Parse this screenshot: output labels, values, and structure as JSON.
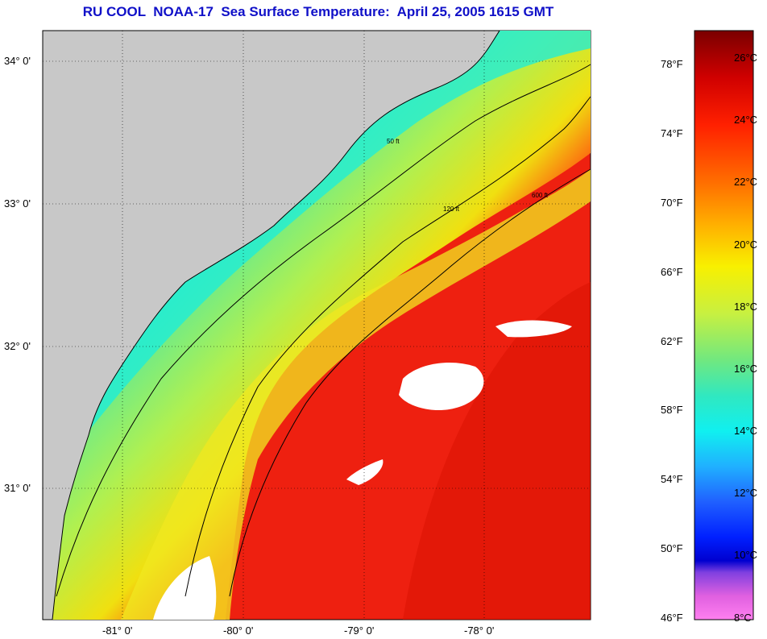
{
  "title": "RU COOL  NOAA-17  Sea Surface Temperature:  April 25, 2005 1615 GMT",
  "map": {
    "lat_ticks": [
      "34° 0'",
      "33° 0'",
      "32° 0'",
      "31° 0'"
    ],
    "lon_ticks": [
      "-81° 0'",
      "-80° 0'",
      "-79° 0'",
      "-78° 0'"
    ],
    "contour_labels": [
      "50 ft",
      "120 ft",
      "600 ft"
    ]
  },
  "colorbar": {
    "fahrenheit": [
      "78°F",
      "74°F",
      "70°F",
      "66°F",
      "62°F",
      "58°F",
      "54°F",
      "50°F",
      "46°F"
    ],
    "celsius": [
      "26°C",
      "24°C",
      "22°C",
      "20°C",
      "18°C",
      "16°C",
      "14°C",
      "12°C",
      "10°C",
      "8°C"
    ],
    "colors": [
      "#7a0000",
      "#d00000",
      "#ff2000",
      "#ff7000",
      "#ffb000",
      "#f8f000",
      "#c8f040",
      "#70e880",
      "#30e8c0",
      "#10f0f0",
      "#20b0ff",
      "#2060ff",
      "#0020ff",
      "#0000d0",
      "#8040e0",
      "#e060e0",
      "#ff80f0"
    ]
  }
}
